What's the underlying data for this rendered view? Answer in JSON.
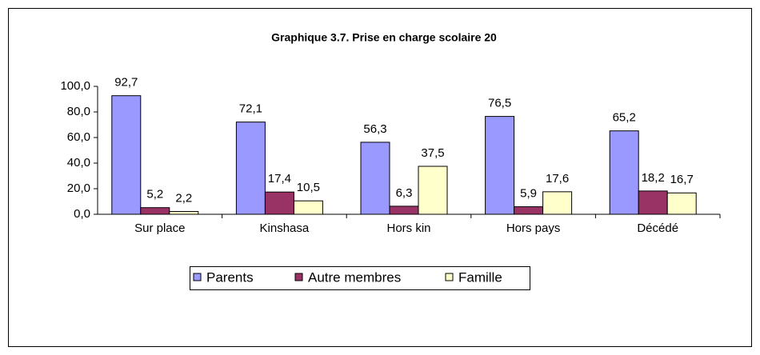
{
  "chart_data": {
    "type": "bar",
    "title": "Graphique 3.7. Prise en charge scolaire 20",
    "categories": [
      "Sur place",
      "Kinshasa",
      "Hors kin",
      "Hors pays",
      "Décédé"
    ],
    "series": [
      {
        "name": "Parents",
        "color": "#9999ff",
        "values": [
          92.7,
          72.1,
          56.3,
          76.5,
          65.2
        ],
        "value_labels": [
          "92,7",
          "72,1",
          "56,3",
          "76,5",
          "65,2"
        ]
      },
      {
        "name": "Autre membres",
        "color": "#993366",
        "values": [
          5.2,
          17.4,
          6.3,
          5.9,
          18.2
        ],
        "value_labels": [
          "5,2",
          "17,4",
          "6,3",
          "5,9",
          "18,2"
        ]
      },
      {
        "name": "Famille",
        "color": "#ffffcc",
        "values": [
          2.2,
          10.5,
          37.5,
          17.6,
          16.7
        ],
        "value_labels": [
          "2,2",
          "10,5",
          "37,5",
          "17,6",
          "16,7"
        ]
      }
    ],
    "ylim": [
      0,
      100
    ],
    "yticks": [
      {
        "value": 0,
        "label": "0,0"
      },
      {
        "value": 20,
        "label": "20,0"
      },
      {
        "value": 40,
        "label": "40,0"
      },
      {
        "value": 60,
        "label": "60,0"
      },
      {
        "value": 80,
        "label": "80,0"
      },
      {
        "value": 100,
        "label": "100,0"
      }
    ],
    "legend": "bottom"
  }
}
